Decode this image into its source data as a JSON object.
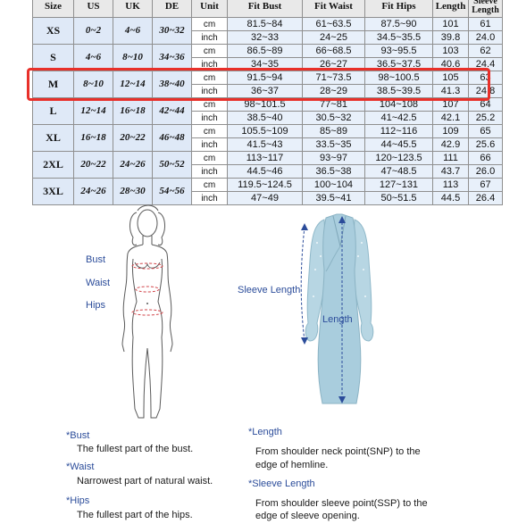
{
  "table": {
    "headers": [
      "Size",
      "US",
      "UK",
      "DE",
      "Unit",
      "Fit Bust",
      "Fit Waist",
      "Fit Hips",
      "Length",
      "Sleeve Length"
    ],
    "rows": [
      {
        "size": "XS",
        "us": "0~2",
        "uk": "4~6",
        "de": "30~32",
        "cm": {
          "bust": "81.5~84",
          "waist": "61~63.5",
          "hips": "87.5~90",
          "length": "101",
          "sleeve": "61"
        },
        "inch": {
          "bust": "32~33",
          "waist": "24~25",
          "hips": "34.5~35.5",
          "length": "39.8",
          "sleeve": "24.0"
        }
      },
      {
        "size": "S",
        "us": "4~6",
        "uk": "8~10",
        "de": "34~36",
        "cm": {
          "bust": "86.5~89",
          "waist": "66~68.5",
          "hips": "93~95.5",
          "length": "103",
          "sleeve": "62"
        },
        "inch": {
          "bust": "34~35",
          "waist": "26~27",
          "hips": "36.5~37.5",
          "length": "40.6",
          "sleeve": "24.4"
        }
      },
      {
        "size": "M",
        "us": "8~10",
        "uk": "12~14",
        "de": "38~40",
        "cm": {
          "bust": "91.5~94",
          "waist": "71~73.5",
          "hips": "98~100.5",
          "length": "105",
          "sleeve": "63"
        },
        "inch": {
          "bust": "36~37",
          "waist": "28~29",
          "hips": "38.5~39.5",
          "length": "41.3",
          "sleeve": "24.8"
        }
      },
      {
        "size": "L",
        "us": "12~14",
        "uk": "16~18",
        "de": "42~44",
        "cm": {
          "bust": "98~101.5",
          "waist": "77~81",
          "hips": "104~108",
          "length": "107",
          "sleeve": "64"
        },
        "inch": {
          "bust": "38.5~40",
          "waist": "30.5~32",
          "hips": "41~42.5",
          "length": "42.1",
          "sleeve": "25.2"
        }
      },
      {
        "size": "XL",
        "us": "16~18",
        "uk": "20~22",
        "de": "46~48",
        "cm": {
          "bust": "105.5~109",
          "waist": "85~89",
          "hips": "112~116",
          "length": "109",
          "sleeve": "65"
        },
        "inch": {
          "bust": "41.5~43",
          "waist": "33.5~35",
          "hips": "44~45.5",
          "length": "42.9",
          "sleeve": "25.6"
        }
      },
      {
        "size": "2XL",
        "us": "20~22",
        "uk": "24~26",
        "de": "50~52",
        "cm": {
          "bust": "113~117",
          "waist": "93~97",
          "hips": "120~123.5",
          "length": "111",
          "sleeve": "66"
        },
        "inch": {
          "bust": "44.5~46",
          "waist": "36.5~38",
          "hips": "47~48.5",
          "length": "43.7",
          "sleeve": "26.0"
        }
      },
      {
        "size": "3XL",
        "us": "24~26",
        "uk": "28~30",
        "de": "54~56",
        "cm": {
          "bust": "119.5~124.5",
          "waist": "100~104",
          "hips": "127~131",
          "length": "113",
          "sleeve": "67"
        },
        "inch": {
          "bust": "47~49",
          "waist": "39.5~41",
          "hips": "50~51.5",
          "length": "44.5",
          "sleeve": "26.4"
        }
      }
    ],
    "units": {
      "cm": "cm",
      "inch": "inch"
    },
    "highlighted_size": "M",
    "highlight_color": "#e8302a"
  },
  "body_figure": {
    "labels": {
      "bust": "Bust",
      "waist": "Waist",
      "hips": "Hips"
    },
    "icon": "woman-body-outline-icon"
  },
  "dress_figure": {
    "labels": {
      "sleeve_length": "Sleeve Length",
      "length": "Length"
    },
    "dress_color": "#a9cddd",
    "icon": "dress-icon"
  },
  "definitions": {
    "bust_title": "*Bust",
    "bust_text": "The fullest part of the bust.",
    "waist_title": "*Waist",
    "waist_text": "Narrowest part of natural waist.",
    "hips_title": "*Hips",
    "hips_text": "The fullest part of the hips.",
    "length_title": "*Length",
    "length_text_1": "From shoulder neck point(SNP) to the",
    "length_text_2": "edge of hemline.",
    "sleeve_title": "*Sleeve Length",
    "sleeve_text_1": "From shoulder sleeve point(SSP) to the",
    "sleeve_text_2": "edge of sleeve opening."
  },
  "colors": {
    "label_blue": "#2b4c9a",
    "table_blue": "#dfe9f7"
  }
}
